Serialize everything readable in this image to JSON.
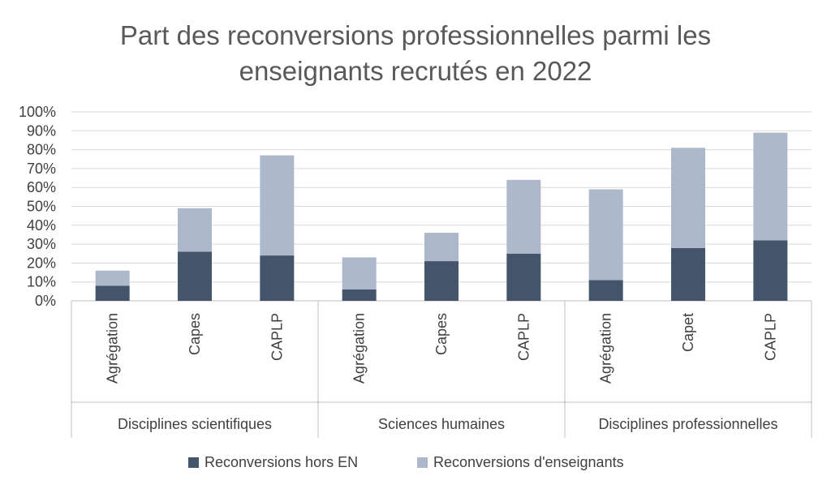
{
  "chart_data": {
    "type": "bar",
    "stacked": true,
    "title_lines": [
      "Part des reconversions professionnelles parmi les",
      "enseignants recrutés en 2022"
    ],
    "ylim": [
      0,
      100
    ],
    "yticks": [
      "0%",
      "10%",
      "20%",
      "30%",
      "40%",
      "50%",
      "60%",
      "70%",
      "80%",
      "90%",
      "100%"
    ],
    "grid": true,
    "legend_position": "bottom",
    "groups": [
      {
        "name": "Disciplines scientifiques",
        "categories": [
          "Agrégation",
          "Capes",
          "CAPLP"
        ]
      },
      {
        "name": "Sciences humaines",
        "categories": [
          "Agrégation",
          "Capes",
          "CAPLP"
        ]
      },
      {
        "name": "Disciplines professionnelles",
        "categories": [
          "Agrégation",
          "Capet",
          "CAPLP"
        ]
      }
    ],
    "series": [
      {
        "name": "Reconversions hors EN",
        "color": "#44546a",
        "values": [
          8,
          26,
          24,
          6,
          21,
          25,
          11,
          28,
          32
        ]
      },
      {
        "name": "Reconversions d'enseignants",
        "color": "#adb9ca",
        "values": [
          8,
          23,
          53,
          17,
          15,
          39,
          48,
          53,
          57
        ]
      }
    ]
  }
}
